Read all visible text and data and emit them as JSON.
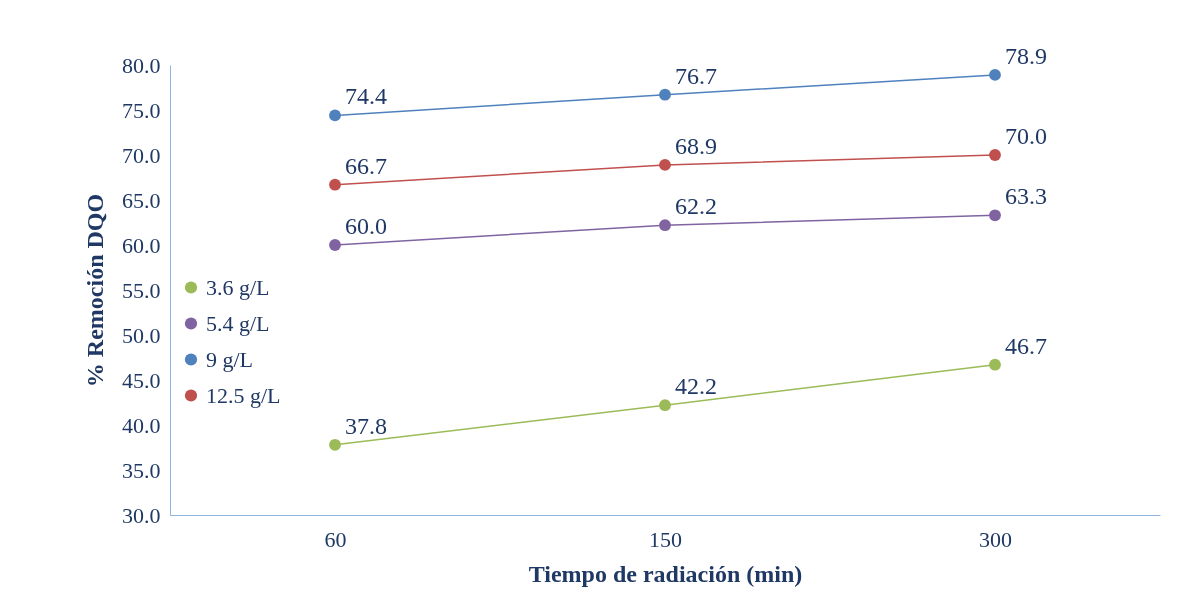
{
  "chart_data": {
    "type": "line",
    "xlabel": "Tiempo de radiación (min)",
    "ylabel": "% Remoción DQO",
    "categories": [
      "60",
      "150",
      "300"
    ],
    "series": [
      {
        "name": "3.6 g/L",
        "color": "#9bbb59",
        "values": [
          37.8,
          42.2,
          46.7
        ],
        "value_labels": [
          "37.8",
          "42.2",
          "46.7"
        ]
      },
      {
        "name": "5.4 g/L",
        "color": "#8064a2",
        "values": [
          60.0,
          62.2,
          63.3
        ],
        "value_labels": [
          "60.0",
          "62.2",
          "63.3"
        ]
      },
      {
        "name": "9 g/L",
        "color": "#4f81bd",
        "values": [
          74.4,
          76.7,
          78.9
        ],
        "value_labels": [
          "74.4",
          "76.7",
          "78.9"
        ]
      },
      {
        "name": "12.5 g/L",
        "color": "#c0504d",
        "values": [
          66.7,
          68.9,
          70.0
        ],
        "value_labels": [
          "66.7",
          "68.9",
          "70.0"
        ]
      }
    ],
    "ylim": [
      30,
      80
    ],
    "yticks": [
      {
        "value": 30,
        "label": "30.0"
      },
      {
        "value": 35,
        "label": "35.0"
      },
      {
        "value": 40,
        "label": "40.0"
      },
      {
        "value": 45,
        "label": "45.0"
      },
      {
        "value": 50,
        "label": "50.0"
      },
      {
        "value": 55,
        "label": "55.0"
      },
      {
        "value": 60,
        "label": "60.0"
      },
      {
        "value": 65,
        "label": "65.0"
      },
      {
        "value": 70,
        "label": "70.0"
      },
      {
        "value": 75,
        "label": "75.0"
      },
      {
        "value": 80,
        "label": "80.0"
      }
    ],
    "grid": false,
    "legend": "left",
    "marker": "circle",
    "line_style": "solid"
  }
}
